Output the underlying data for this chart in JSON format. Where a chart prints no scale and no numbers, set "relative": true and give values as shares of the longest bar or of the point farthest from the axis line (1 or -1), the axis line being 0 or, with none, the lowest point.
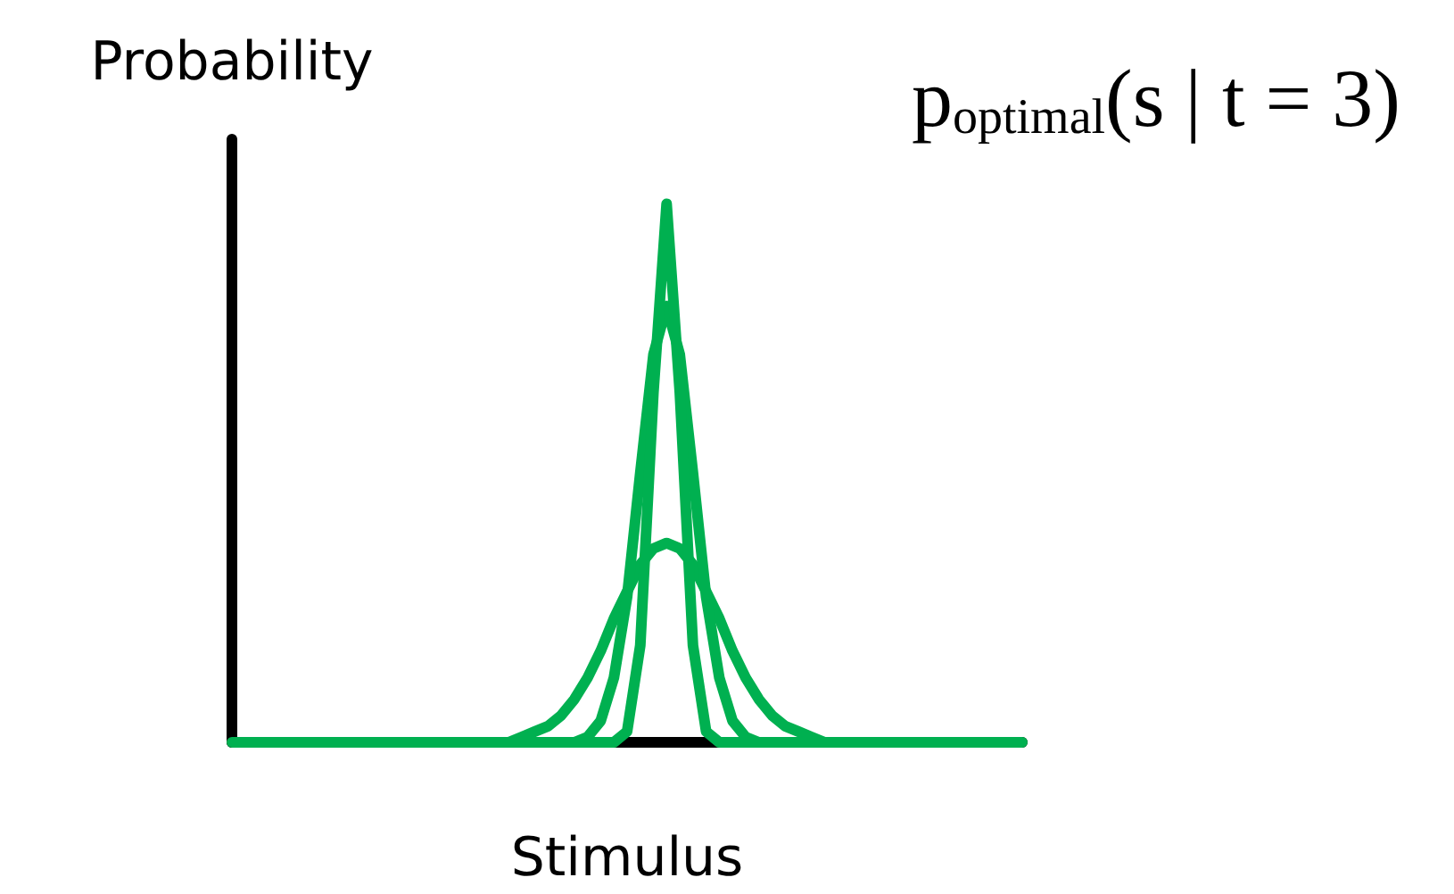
{
  "chart_data": {
    "type": "line",
    "title": "p$_{optimal}$(s | t = 3)",
    "ylabel": "Probability",
    "xlabel": "Stimulus",
    "relative": true,
    "line_style": "solid",
    "categories": [
      null,
      null,
      null,
      null,
      null,
      null,
      null,
      null,
      null,
      null,
      null,
      null,
      null,
      null,
      null,
      null,
      null,
      null,
      null,
      null,
      null,
      null,
      null,
      null,
      null,
      null,
      null,
      null,
      null,
      null,
      null,
      null,
      null,
      null,
      null,
      null,
      null,
      null,
      null,
      null,
      null,
      null,
      null,
      null,
      null,
      null,
      null,
      null,
      null,
      null,
      null,
      null,
      null,
      null,
      null,
      null,
      null,
      null,
      null,
      null,
      null
    ],
    "series": [
      {
        "color": "#00b050",
        "values": [
          0,
          0,
          0,
          0,
          0,
          0,
          0,
          0,
          0,
          0,
          0,
          0,
          0,
          0,
          0,
          0,
          0,
          0,
          0,
          0,
          0,
          0,
          0.01,
          0.02,
          0.03,
          0.05,
          0.08,
          0.12,
          0.17,
          0.23,
          0.28,
          0.33,
          0.36,
          0.37,
          0.36,
          0.33,
          0.28,
          0.23,
          0.17,
          0.12,
          0.08,
          0.05,
          0.03,
          0.02,
          0.01,
          0,
          0,
          0,
          0,
          0,
          0,
          0,
          0,
          0,
          0,
          0,
          0,
          0,
          0,
          0,
          0
        ]
      },
      {
        "color": "#00b050",
        "values": [
          null,
          null,
          null,
          null,
          null,
          null,
          null,
          null,
          null,
          null,
          null,
          null,
          null,
          null,
          null,
          null,
          null,
          0,
          0,
          0,
          0,
          0,
          0,
          0,
          0,
          0,
          0,
          0.01,
          0.04,
          0.12,
          0.27,
          0.5,
          0.72,
          0.81,
          0.72,
          0.5,
          0.27,
          0.12,
          0.04,
          0.01,
          0,
          0,
          0,
          0,
          0,
          0,
          0,
          0,
          0,
          0,
          null,
          null,
          null,
          null,
          null,
          null,
          null,
          null,
          null,
          null,
          null
        ]
      },
      {
        "color": "#00b050",
        "values": [
          null,
          null,
          null,
          null,
          null,
          null,
          null,
          null,
          null,
          null,
          null,
          null,
          null,
          null,
          null,
          null,
          null,
          0,
          0,
          0,
          0,
          0,
          0,
          0,
          0,
          0,
          0,
          0,
          0,
          0,
          0.02,
          0.18,
          0.65,
          1,
          0.65,
          0.18,
          0.02,
          0,
          0,
          0,
          0,
          0,
          0,
          0,
          0,
          0,
          0,
          0,
          0,
          0,
          null,
          null,
          null,
          null,
          null,
          null,
          null,
          null,
          null,
          null,
          null
        ]
      }
    ]
  }
}
